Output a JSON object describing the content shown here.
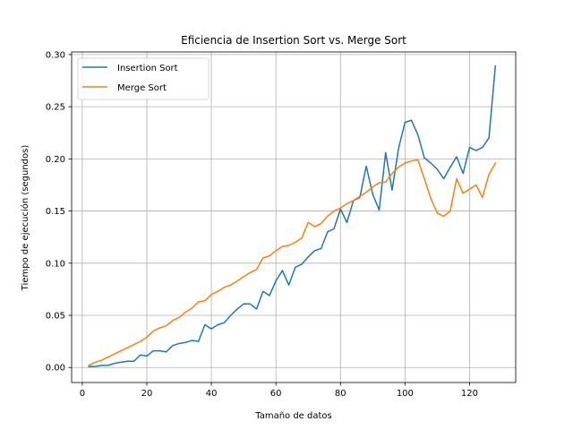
{
  "chart_data": {
    "type": "line",
    "title": "Eficiencia de Insertion Sort vs. Merge Sort",
    "xlabel": "Tamaño de datos",
    "ylabel": "Tiempo de ejecución (segundos)",
    "xlim": [
      -3.3,
      134.3
    ],
    "ylim": [
      -0.0144,
      0.3025
    ],
    "xticks": [
      0,
      20,
      40,
      60,
      80,
      100,
      120
    ],
    "yticks": [
      0.0,
      0.05,
      0.1,
      0.15,
      0.2,
      0.25,
      0.3
    ],
    "grid": true,
    "legend_position": "top-left",
    "x": [
      2,
      4,
      6,
      8,
      10,
      12,
      14,
      16,
      18,
      20,
      22,
      24,
      26,
      28,
      30,
      32,
      34,
      36,
      38,
      40,
      42,
      44,
      46,
      48,
      50,
      52,
      54,
      56,
      58,
      60,
      62,
      64,
      66,
      68,
      70,
      72,
      74,
      76,
      78,
      80,
      82,
      84,
      86,
      88,
      90,
      92,
      94,
      96,
      98,
      100,
      102,
      104,
      106,
      108,
      110,
      112,
      114,
      116,
      118,
      120,
      122,
      124,
      126,
      128
    ],
    "series": [
      {
        "name": "Insertion Sort",
        "color": "#1f77b4",
        "values": [
          0.001,
          0.001,
          0.002,
          0.002,
          0.004,
          0.005,
          0.006,
          0.006,
          0.012,
          0.011,
          0.016,
          0.016,
          0.015,
          0.021,
          0.023,
          0.024,
          0.026,
          0.025,
          0.041,
          0.037,
          0.041,
          0.043,
          0.05,
          0.056,
          0.061,
          0.061,
          0.056,
          0.073,
          0.069,
          0.083,
          0.093,
          0.079,
          0.096,
          0.099,
          0.106,
          0.112,
          0.114,
          0.13,
          0.133,
          0.152,
          0.139,
          0.16,
          0.163,
          0.193,
          0.166,
          0.151,
          0.206,
          0.17,
          0.21,
          0.235,
          0.237,
          0.223,
          0.201,
          0.196,
          0.19,
          0.181,
          0.192,
          0.202,
          0.186,
          0.211,
          0.208,
          0.211,
          0.22,
          0.289
        ]
      },
      {
        "name": "Merge Sort",
        "color": "#ff7f0e",
        "values": [
          0.002,
          0.005,
          0.007,
          0.01,
          0.013,
          0.016,
          0.019,
          0.022,
          0.025,
          0.029,
          0.035,
          0.038,
          0.04,
          0.045,
          0.048,
          0.053,
          0.057,
          0.063,
          0.064,
          0.07,
          0.073,
          0.077,
          0.079,
          0.083,
          0.087,
          0.091,
          0.094,
          0.105,
          0.107,
          0.112,
          0.116,
          0.117,
          0.12,
          0.124,
          0.139,
          0.135,
          0.138,
          0.145,
          0.15,
          0.153,
          0.157,
          0.16,
          0.164,
          0.168,
          0.173,
          0.177,
          0.178,
          0.186,
          0.192,
          0.196,
          0.198,
          0.199,
          0.181,
          0.162,
          0.148,
          0.145,
          0.15,
          0.181,
          0.167,
          0.171,
          0.175,
          0.163,
          0.185,
          0.196
        ]
      }
    ]
  }
}
